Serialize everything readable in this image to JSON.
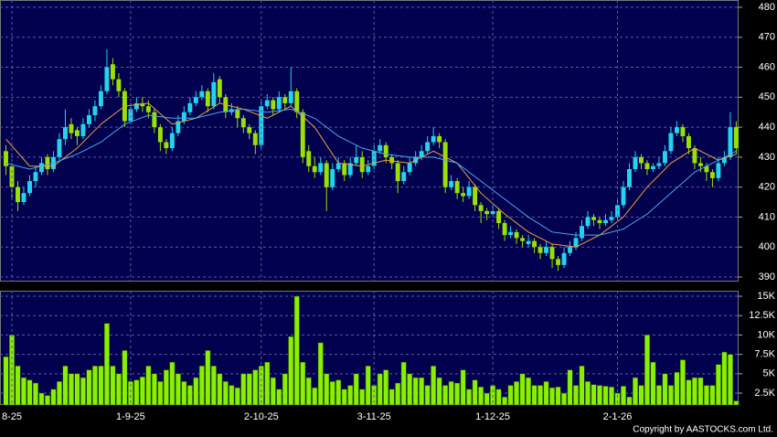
{
  "chart_data": [
    {
      "type": "candlestick",
      "up_color": "#22d4ee",
      "down_color": "#9be000",
      "xlim": [
        -1,
        123.4
      ],
      "ylim": [
        388.47,
        482.44
      ],
      "yticks": [
        390,
        400,
        410,
        420,
        430,
        440,
        450,
        460,
        470,
        480
      ],
      "grid": true,
      "candles": [
        [
          432,
          434,
          424,
          427
        ],
        [
          427,
          428,
          416,
          420
        ],
        [
          420,
          422,
          412,
          415
        ],
        [
          415,
          420,
          414,
          418
        ],
        [
          418,
          424,
          417,
          422
        ],
        [
          422,
          427,
          420,
          425
        ],
        [
          425,
          430,
          424,
          428
        ],
        [
          430,
          431,
          424,
          426
        ],
        [
          426,
          432,
          425,
          430
        ],
        [
          430,
          438,
          429,
          436
        ],
        [
          436,
          446,
          434,
          440
        ],
        [
          441,
          443,
          436,
          438
        ],
        [
          439,
          440,
          434,
          437
        ],
        [
          437,
          443,
          436,
          441
        ],
        [
          441,
          446,
          440,
          444
        ],
        [
          444,
          449,
          442,
          447
        ],
        [
          447,
          454,
          446,
          452
        ],
        [
          452,
          466,
          451,
          460
        ],
        [
          461,
          463,
          454,
          456
        ],
        [
          456,
          458,
          450,
          452
        ],
        [
          452,
          453,
          440,
          442
        ],
        [
          442,
          448,
          441,
          446
        ],
        [
          446,
          450,
          445,
          448
        ],
        [
          448,
          450,
          445,
          447
        ],
        [
          447,
          449,
          443,
          445
        ],
        [
          445,
          446,
          438,
          440
        ],
        [
          440,
          441,
          432,
          435
        ],
        [
          435,
          436,
          431,
          433
        ],
        [
          433,
          440,
          432,
          438
        ],
        [
          438,
          444,
          437,
          442
        ],
        [
          442,
          447,
          441,
          445
        ],
        [
          445,
          450,
          444,
          448
        ],
        [
          448,
          452,
          447,
          450
        ],
        [
          450,
          454,
          449,
          452
        ],
        [
          452,
          453,
          445,
          447
        ],
        [
          447,
          458,
          446,
          455
        ],
        [
          456,
          457,
          448,
          450
        ],
        [
          450,
          451,
          443,
          445
        ],
        [
          445,
          448,
          444,
          446
        ],
        [
          446,
          447,
          440,
          443
        ],
        [
          443,
          444,
          438,
          440
        ],
        [
          440,
          441,
          436,
          438
        ],
        [
          438,
          439,
          431,
          434
        ],
        [
          434,
          449,
          433,
          447
        ],
        [
          447,
          451,
          446,
          449
        ],
        [
          449,
          450,
          444,
          446
        ],
        [
          446,
          452,
          445,
          450
        ],
        [
          450,
          451,
          446,
          448
        ],
        [
          448,
          460,
          447,
          452
        ],
        [
          452,
          453,
          443,
          445
        ],
        [
          445,
          446,
          428,
          430
        ],
        [
          432,
          434,
          425,
          427
        ],
        [
          427,
          430,
          423,
          425
        ],
        [
          425,
          430,
          424,
          428
        ],
        [
          428,
          429,
          412,
          420
        ],
        [
          420,
          428,
          419,
          426
        ],
        [
          426,
          430,
          425,
          428
        ],
        [
          428,
          429,
          422,
          424
        ],
        [
          424,
          430,
          423,
          428
        ],
        [
          428,
          434,
          427,
          430
        ],
        [
          430,
          432,
          423,
          425
        ],
        [
          425,
          429,
          424,
          427
        ],
        [
          427,
          434,
          426,
          432
        ],
        [
          432,
          436,
          431,
          434
        ],
        [
          434,
          435,
          428,
          430
        ],
        [
          430,
          431,
          426,
          428
        ],
        [
          428,
          429,
          418,
          422
        ],
        [
          422,
          427,
          421,
          425
        ],
        [
          425,
          430,
          424,
          428
        ],
        [
          428,
          432,
          427,
          430
        ],
        [
          430,
          434,
          429,
          432
        ],
        [
          432,
          437,
          431,
          435
        ],
        [
          435,
          440,
          434,
          437
        ],
        [
          437,
          438,
          433,
          435
        ],
        [
          435,
          436,
          418,
          420
        ],
        [
          420,
          424,
          419,
          422
        ],
        [
          422,
          423,
          416,
          418
        ],
        [
          418,
          420,
          415,
          417
        ],
        [
          417,
          422,
          416,
          420
        ],
        [
          420,
          421,
          412,
          414
        ],
        [
          414,
          415,
          408,
          412
        ],
        [
          412,
          413,
          409,
          411
        ],
        [
          411,
          414,
          410,
          412
        ],
        [
          412,
          413,
          406,
          408
        ],
        [
          408,
          409,
          402,
          404
        ],
        [
          404,
          407,
          403,
          405
        ],
        [
          405,
          406,
          401,
          403
        ],
        [
          403,
          404,
          400,
          402
        ],
        [
          401,
          404,
          400,
          402
        ],
        [
          402,
          403,
          398,
          400
        ],
        [
          400,
          401,
          396,
          398
        ],
        [
          398,
          402,
          397,
          400
        ],
        [
          400,
          401,
          393,
          396
        ],
        [
          396,
          397,
          392,
          394
        ],
        [
          394,
          400,
          393,
          398
        ],
        [
          398,
          402,
          397,
          400
        ],
        [
          400,
          405,
          399,
          403
        ],
        [
          403,
          409,
          402,
          407
        ],
        [
          407,
          412,
          406,
          410
        ],
        [
          410,
          411,
          407,
          409
        ],
        [
          409,
          410,
          406,
          408
        ],
        [
          408,
          411,
          407,
          409
        ],
        [
          409,
          412,
          408,
          410
        ],
        [
          410,
          416,
          409,
          414
        ],
        [
          414,
          422,
          413,
          420
        ],
        [
          420,
          428,
          419,
          426
        ],
        [
          426,
          432,
          425,
          430
        ],
        [
          430,
          431,
          426,
          428
        ],
        [
          428,
          429,
          424,
          426
        ],
        [
          426,
          428,
          425,
          427
        ],
        [
          427,
          430,
          426,
          428
        ],
        [
          428,
          434,
          427,
          432
        ],
        [
          432,
          440,
          431,
          438
        ],
        [
          438,
          442,
          437,
          440
        ],
        [
          440,
          441,
          435,
          437
        ],
        [
          437,
          438,
          431,
          433
        ],
        [
          433,
          434,
          426,
          428
        ],
        [
          428,
          430,
          425,
          427
        ],
        [
          427,
          428,
          422,
          425
        ],
        [
          425,
          426,
          420,
          423
        ],
        [
          423,
          430,
          422,
          428
        ],
        [
          428,
          432,
          427,
          430
        ],
        [
          430,
          445,
          429,
          440
        ],
        [
          440,
          442,
          431,
          433
        ]
      ],
      "line_x": [
        0,
        4,
        8,
        12,
        16,
        20,
        24,
        28,
        32,
        36,
        40,
        44,
        48,
        52,
        56,
        60,
        64,
        68,
        72,
        76,
        80,
        84,
        88,
        92,
        96,
        100,
        104,
        108,
        112,
        116,
        120,
        123
      ],
      "lines": [
        {
          "color": "#f0a040",
          "values": [
            436,
            427,
            427,
            433,
            441,
            447,
            448,
            441,
            443,
            448,
            446,
            443,
            447,
            440,
            428,
            427,
            429,
            428,
            432,
            428,
            418,
            411,
            405,
            401,
            400,
            404,
            410,
            420,
            428,
            433,
            429,
            431
          ]
        },
        {
          "color": "#4aa8f0",
          "values": [
            428,
            426,
            428,
            431,
            435,
            441,
            444,
            443,
            443,
            445,
            446,
            445,
            446,
            443,
            437,
            433,
            431,
            430,
            430,
            428,
            422,
            416,
            410,
            405,
            404,
            404,
            406,
            411,
            418,
            425,
            429,
            432
          ]
        }
      ]
    },
    {
      "type": "bar",
      "color": "#88f000",
      "xlim": [
        -1,
        123.4
      ],
      "ylim": [
        970,
        15710
      ],
      "yticks": [
        {
          "value": 2500,
          "label": "2.5K"
        },
        {
          "value": 5000,
          "label": "5K"
        },
        {
          "value": 7500,
          "label": "7.5K"
        },
        {
          "value": 10000,
          "label": "10K"
        },
        {
          "value": 12500,
          "label": "12.5K"
        },
        {
          "value": 15000,
          "label": "15K"
        }
      ],
      "xticks": [
        {
          "value": 1,
          "label": "8-25"
        },
        {
          "value": 21,
          "label": "1-9-25"
        },
        {
          "value": 43,
          "label": "2-10-25"
        },
        {
          "value": 62,
          "label": "3-11-25"
        },
        {
          "value": 82,
          "label": "1-12-25"
        },
        {
          "value": 103,
          "label": "2-1-26"
        }
      ],
      "grid": true,
      "values": [
        7200,
        10000,
        6000,
        4500,
        4200,
        3800,
        2500,
        2200,
        3000,
        4000,
        6000,
        5000,
        5000,
        4500,
        5500,
        6000,
        6000,
        11500,
        6000,
        5000,
        8000,
        4000,
        4200,
        4600,
        6000,
        5000,
        4000,
        5500,
        6500,
        5000,
        4000,
        3500,
        4500,
        6000,
        8000,
        6000,
        5000,
        4000,
        3500,
        3200,
        5000,
        5000,
        5500,
        6000,
        6500,
        4500,
        3000,
        5000,
        9800,
        15000,
        6500,
        4500,
        3200,
        9000,
        5000,
        4000,
        4200,
        3000,
        3500,
        5000,
        3000,
        6000,
        3500,
        5000,
        5500,
        3000,
        3800,
        6500,
        5000,
        4500,
        4500,
        3500,
        6000,
        4500,
        3500,
        4000,
        3800,
        5500,
        3000,
        4200,
        3300,
        2500,
        3500,
        3000,
        2000,
        3500,
        4000,
        5000,
        4500,
        3500,
        3500,
        4000,
        3200,
        3300,
        2500,
        5500,
        3500,
        6000,
        4000,
        3600,
        3500,
        3400,
        3300,
        2500,
        3400,
        2000,
        4500,
        3500,
        10000,
        6500,
        3500,
        5000,
        3500,
        5200,
        6800,
        4200,
        4500,
        4500,
        3500,
        3500,
        6200,
        7800,
        7500,
        1500
      ]
    }
  ],
  "copyright": "Copyright by AASTOCKS.com Ltd."
}
